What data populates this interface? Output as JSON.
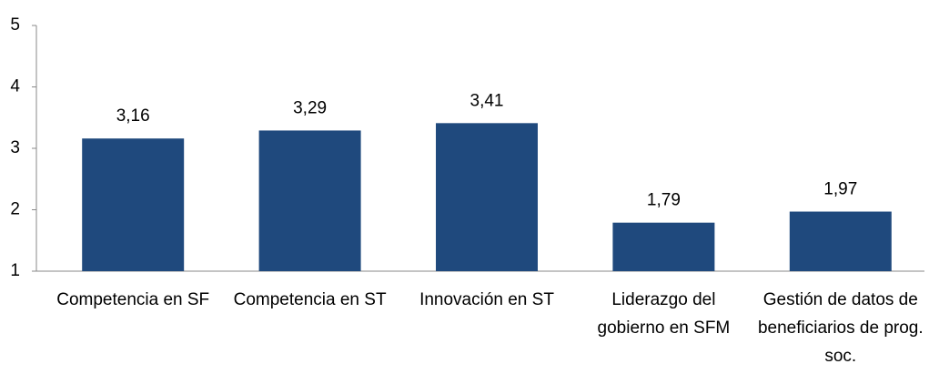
{
  "chart_data": {
    "type": "bar",
    "categories": [
      "Competencia en SF",
      "Competencia en ST",
      "Innovación en ST",
      "Liderazgo del gobierno en SFM",
      "Gestión de datos de beneficiarios de prog. soc."
    ],
    "values": [
      3.16,
      3.29,
      3.41,
      1.79,
      1.97
    ],
    "value_labels": [
      "3,16",
      "3,29",
      "3,41",
      "1,79",
      "1,97"
    ],
    "color": "#1f497d",
    "ylim": [
      1,
      5
    ],
    "yticks": [
      1,
      2,
      3,
      4,
      5
    ],
    "grid": false
  }
}
